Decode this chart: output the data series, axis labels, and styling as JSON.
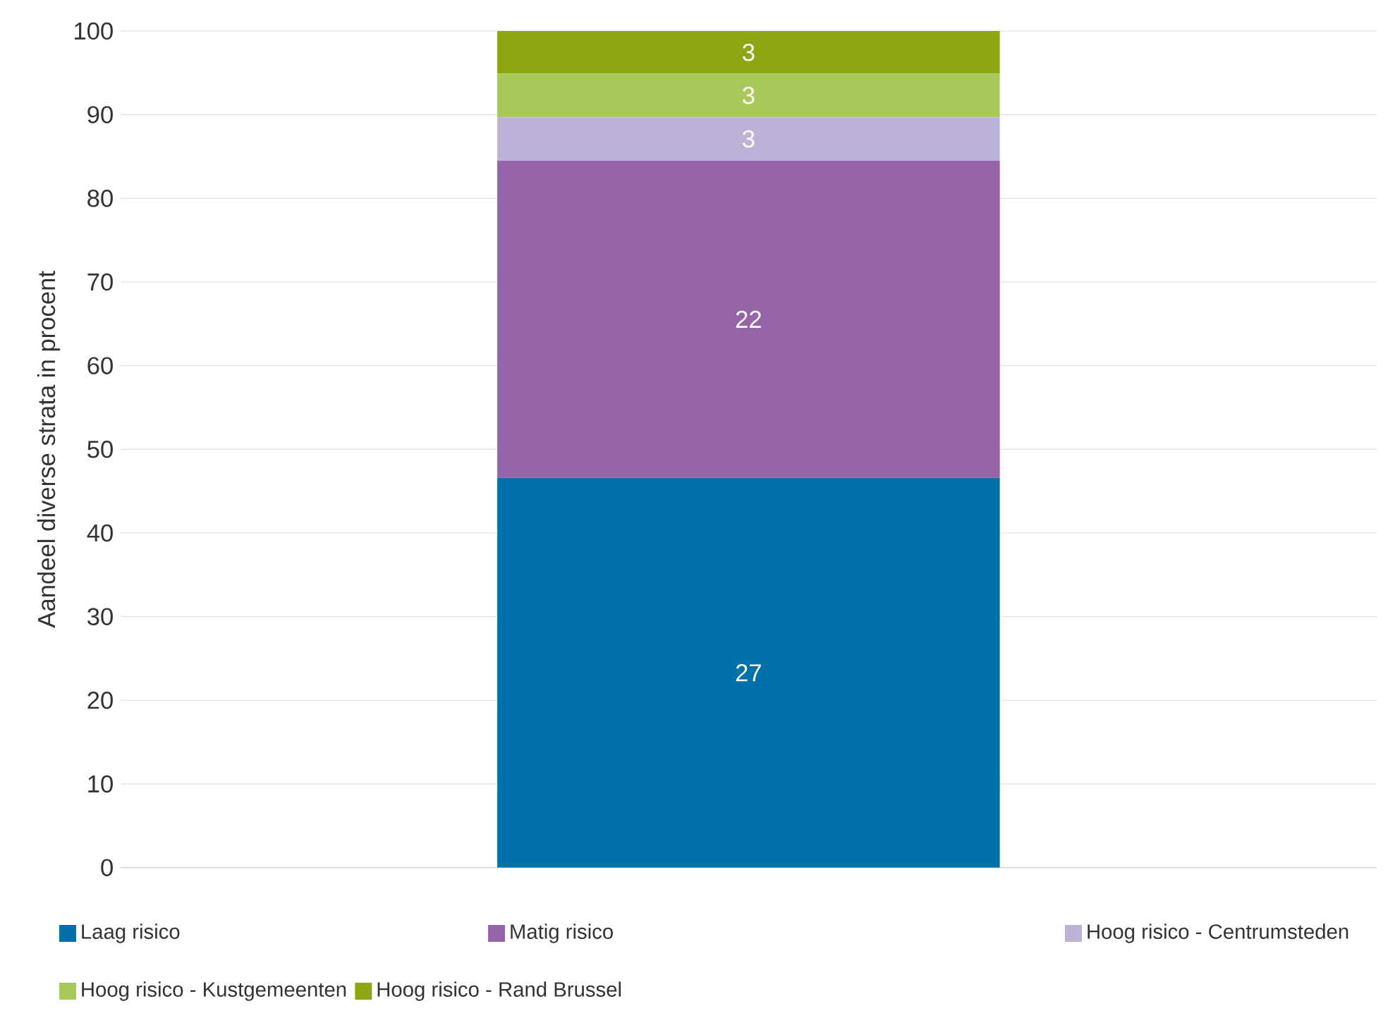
{
  "chart_data": {
    "type": "bar",
    "stacked": true,
    "ylabel": "Aandeel diverse strata in procent",
    "categories": [
      null
    ],
    "series": [
      {
        "name": "Laag risico",
        "color": "#0072a9",
        "values": [
          46.6
        ]
      },
      {
        "name": "Matig risico",
        "color": "#9664a8",
        "values": [
          37.9
        ]
      },
      {
        "name": "Hoog risico - Centrumsteden",
        "color": "#bdb3d9",
        "values": [
          5.2
        ]
      },
      {
        "name": "Hoog risico - Kustgemeenten",
        "color": "#a6c95a",
        "values": [
          5.2
        ]
      },
      {
        "name": "Hoog risico - Rand Brussel",
        "color": "#8da614",
        "values": [
          5.1
        ]
      }
    ],
    "annotations": [
      "27",
      "22",
      "3",
      "3",
      "3"
    ],
    "ylim": [
      0,
      100
    ],
    "yticks": [
      0,
      10,
      20,
      30,
      40,
      50,
      60,
      70,
      80,
      90,
      100
    ],
    "grid": "y",
    "legend": "bottom"
  }
}
